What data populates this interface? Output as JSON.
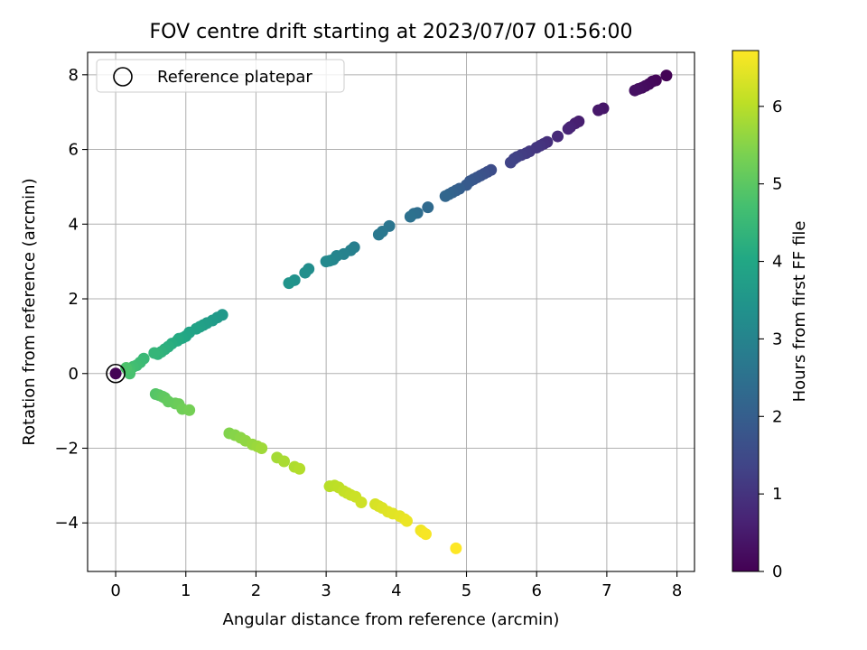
{
  "chart_data": {
    "type": "scatter",
    "title": "FOV centre drift starting at 2023/07/07 01:56:00",
    "xlabel": "Angular distance from reference (arcmin)",
    "ylabel": "Rotation from reference (arcmin)",
    "xlim": [
      -0.4,
      8.25
    ],
    "ylim": [
      -5.3,
      8.6
    ],
    "xticks": [
      0,
      1,
      2,
      3,
      4,
      5,
      6,
      7,
      8
    ],
    "yticks": [
      -4,
      -2,
      0,
      2,
      4,
      6,
      8
    ],
    "ytick_labels": [
      "−4",
      "−2",
      "0",
      "2",
      "4",
      "6",
      "8"
    ],
    "grid": true,
    "legend": {
      "placement": "top-left",
      "entries": [
        "Reference platepar"
      ]
    },
    "reference_point": {
      "x": 0,
      "y": 0
    },
    "colorbar": {
      "label": "Hours from first FF file",
      "colormap": "viridis",
      "range": [
        0,
        6.72
      ],
      "ticks": [
        0,
        1,
        2,
        3,
        4,
        5,
        6
      ]
    },
    "series": [
      {
        "x": [
          0,
          7.85,
          7.7,
          7.65,
          7.6,
          7.55,
          7.5,
          7.45,
          7.4
        ],
        "y": [
          0,
          7.98,
          7.85,
          7.82,
          7.75,
          7.7,
          7.65,
          7.62,
          7.58
        ],
        "c": [
          0.02,
          0.05,
          0.1,
          0.13,
          0.16,
          0.2,
          0.23,
          0.27,
          0.3
        ]
      },
      {
        "x": [
          6.95,
          6.88,
          6.6,
          6.55,
          6.48,
          6.45,
          6.3,
          6.15,
          6.1,
          6.05,
          6.0,
          5.9,
          5.85,
          5.78,
          5.72,
          5.68,
          5.63,
          5.35,
          5.3,
          5.25,
          5.2,
          5.15,
          5.1,
          5.05,
          5.0,
          4.9,
          4.85,
          4.8,
          4.75,
          4.7
        ],
        "y": [
          7.1,
          7.05,
          6.75,
          6.7,
          6.6,
          6.55,
          6.35,
          6.2,
          6.15,
          6.1,
          6.05,
          5.95,
          5.9,
          5.85,
          5.8,
          5.75,
          5.65,
          5.45,
          5.4,
          5.35,
          5.3,
          5.25,
          5.2,
          5.15,
          5.05,
          4.95,
          4.9,
          4.85,
          4.8,
          4.75
        ],
        "c": [
          0.4,
          0.45,
          0.55,
          0.6,
          0.65,
          0.7,
          0.8,
          0.9,
          0.95,
          1.0,
          1.05,
          1.1,
          1.15,
          1.2,
          1.25,
          1.3,
          1.35,
          1.55,
          1.6,
          1.65,
          1.7,
          1.75,
          1.8,
          1.85,
          1.9,
          2.0,
          2.05,
          2.1,
          2.15,
          2.2
        ]
      },
      {
        "x": [
          4.45,
          4.3,
          4.25,
          4.2,
          3.9,
          3.8,
          3.75,
          3.4,
          3.35,
          3.25,
          3.15,
          3.1,
          3.05,
          3.0,
          2.75,
          2.7,
          2.55,
          2.47
        ],
        "y": [
          4.45,
          4.3,
          4.28,
          4.2,
          3.95,
          3.8,
          3.72,
          3.38,
          3.3,
          3.2,
          3.15,
          3.05,
          3.02,
          3.0,
          2.8,
          2.7,
          2.5,
          2.42
        ],
        "c": [
          2.3,
          2.4,
          2.45,
          2.5,
          2.6,
          2.65,
          2.7,
          2.85,
          2.9,
          2.95,
          3.0,
          3.05,
          3.1,
          3.15,
          3.25,
          3.3,
          3.4,
          3.45
        ]
      },
      {
        "x": [
          1.52,
          1.45,
          1.38,
          1.3,
          1.25,
          1.2,
          1.15,
          1.05,
          1.0,
          0.95,
          0.9,
          0.88,
          0.8,
          0.75,
          0.7,
          0.65,
          0.6,
          0.55,
          0.4,
          0.35,
          0.3,
          0.25,
          0.2,
          0.2,
          0.15
        ],
        "y": [
          1.57,
          1.5,
          1.42,
          1.35,
          1.3,
          1.25,
          1.2,
          1.1,
          1.0,
          0.95,
          0.93,
          0.88,
          0.8,
          0.72,
          0.65,
          0.58,
          0.52,
          0.55,
          0.4,
          0.3,
          0.22,
          0.18,
          0.12,
          0.0,
          0.15
        ],
        "c": [
          3.55,
          3.6,
          3.65,
          3.7,
          3.75,
          3.8,
          3.85,
          3.9,
          3.95,
          4.0,
          4.05,
          4.1,
          4.15,
          4.2,
          4.25,
          4.3,
          4.35,
          4.4,
          4.5,
          4.55,
          4.6,
          4.65,
          4.7,
          4.75,
          4.8
        ]
      },
      {
        "x": [
          0.57,
          0.62,
          0.67,
          0.7,
          0.75,
          0.85,
          0.9,
          0.95,
          1.05,
          1.62,
          1.7,
          1.78,
          1.85,
          1.95,
          2.02,
          2.08,
          2.3,
          2.4,
          2.55,
          2.62
        ],
        "y": [
          -0.55,
          -0.58,
          -0.62,
          -0.65,
          -0.75,
          -0.8,
          -0.82,
          -0.95,
          -0.98,
          -1.6,
          -1.65,
          -1.72,
          -1.8,
          -1.9,
          -1.95,
          -2.0,
          -2.25,
          -2.35,
          -2.5,
          -2.55
        ],
        "c": [
          4.9,
          4.95,
          5.0,
          5.05,
          5.1,
          5.15,
          5.2,
          5.25,
          5.3,
          5.45,
          5.5,
          5.55,
          5.6,
          5.65,
          5.7,
          5.75,
          5.8,
          5.85,
          5.9,
          5.95
        ]
      },
      {
        "x": [
          3.05,
          3.12,
          3.18,
          3.25,
          3.3,
          3.35,
          3.42,
          3.5,
          3.7,
          3.75,
          3.8,
          3.88,
          3.95,
          4.05,
          4.12,
          4.15,
          4.35,
          4.38,
          4.42,
          4.85
        ],
        "y": [
          -3.02,
          -3.0,
          -3.05,
          -3.15,
          -3.2,
          -3.25,
          -3.3,
          -3.45,
          -3.5,
          -3.55,
          -3.6,
          -3.7,
          -3.75,
          -3.82,
          -3.9,
          -3.95,
          -4.2,
          -4.25,
          -4.3,
          -4.68
        ],
        "c": [
          6.0,
          6.03,
          6.06,
          6.1,
          6.13,
          6.16,
          6.2,
          6.23,
          6.3,
          6.33,
          6.36,
          6.4,
          6.43,
          6.46,
          6.5,
          6.53,
          6.58,
          6.62,
          6.66,
          6.72
        ]
      }
    ]
  }
}
